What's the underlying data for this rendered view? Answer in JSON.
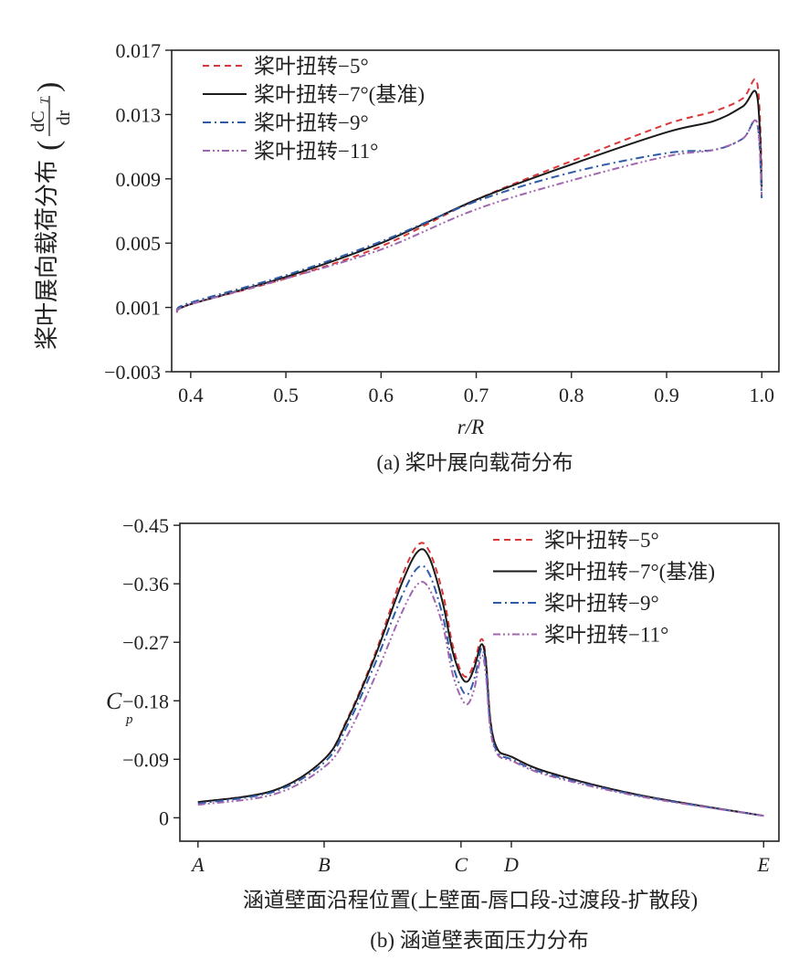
{
  "chart_data": [
    {
      "type": "line",
      "title": "",
      "caption": "(a) 桨叶展向载荷分布",
      "xlabel": "r/R",
      "ylabel": "桨叶展向载荷分布",
      "ylabel_fraction": {
        "num": "dC",
        "num_sub": "T",
        "den": "dr"
      },
      "xlim": [
        0.38,
        1.018
      ],
      "ylim": [
        -0.003,
        0.017
      ],
      "xticks": [
        0.4,
        0.5,
        0.6,
        0.7,
        0.8,
        0.9,
        1.0
      ],
      "xtick_labels": [
        "0.4",
        "0.5",
        "0.6",
        "0.7",
        "0.8",
        "0.9",
        "1.0"
      ],
      "yticks": [
        -0.003,
        0.001,
        0.005,
        0.009,
        0.013,
        0.017
      ],
      "ytick_labels": [
        "−0.003",
        "0.001",
        "0.005",
        "0.009",
        "0.013",
        "0.017"
      ],
      "legend_position": "top-left",
      "x": [
        0.385,
        0.4,
        0.5,
        0.6,
        0.7,
        0.8,
        0.9,
        0.95,
        0.98,
        0.995,
        1.0
      ],
      "series": [
        {
          "name": "桨叶扭转−5°",
          "color": "#d9383a",
          "dash": "dashed",
          "values": [
            0.0007,
            0.0012,
            0.0028,
            0.0048,
            0.0077,
            0.0101,
            0.0124,
            0.0132,
            0.014,
            0.015,
            0.0095
          ]
        },
        {
          "name": "桨叶扭转−7°(基准)",
          "color": "#1a1a1a",
          "dash": "solid",
          "values": [
            0.0007,
            0.0012,
            0.0029,
            0.005,
            0.0077,
            0.0099,
            0.0119,
            0.0126,
            0.0135,
            0.0142,
            0.0085
          ]
        },
        {
          "name": "桨叶扭转−9°",
          "color": "#2f5ca8",
          "dash": "dashdot",
          "values": [
            0.0008,
            0.0013,
            0.003,
            0.0051,
            0.0076,
            0.0094,
            0.0106,
            0.0108,
            0.0115,
            0.0125,
            0.0078
          ]
        },
        {
          "name": "桨叶扭转−11°",
          "color": "#a066b0",
          "dash": "dashdotdot",
          "values": [
            0.0007,
            0.0012,
            0.0028,
            0.0046,
            0.0071,
            0.0089,
            0.0104,
            0.0108,
            0.0115,
            0.0125,
            0.008
          ]
        }
      ]
    },
    {
      "type": "line",
      "title": "",
      "caption": "(b) 涵道壁表面压力分布",
      "xlabel": "涵道壁面沿程位置(上壁面-唇口段-过渡段-扩散段)",
      "ylabel": "C",
      "ylabel_sub": "p",
      "xlim": [
        -0.032,
        1.027
      ],
      "ylim": [
        0.036,
        -0.453
      ],
      "y_inverted": true,
      "xticks": [
        0,
        0.223,
        0.465,
        0.554,
        1.0
      ],
      "xtick_labels": [
        "A",
        "B",
        "C",
        "D",
        "E"
      ],
      "yticks": [
        -0.45,
        -0.36,
        -0.27,
        -0.18,
        -0.09,
        0
      ],
      "ytick_labels": [
        "−0.45",
        "−0.36",
        "−0.27",
        "−0.18",
        "−0.09",
        "0"
      ],
      "legend_position": "top-right",
      "x": [
        0,
        0.134,
        0.223,
        0.263,
        0.312,
        0.36,
        0.389,
        0.409,
        0.433,
        0.449,
        0.465,
        0.477,
        0.489,
        0.501,
        0.509,
        0.517,
        0.53,
        0.554,
        0.619,
        0.78,
        1.0
      ],
      "series": [
        {
          "name": "桨叶扭转−5°",
          "color": "#d9383a",
          "dash": "dashed",
          "values": [
            -0.024,
            -0.042,
            -0.09,
            -0.15,
            -0.25,
            -0.37,
            -0.42,
            -0.41,
            -0.345,
            -0.27,
            -0.225,
            -0.218,
            -0.24,
            -0.275,
            -0.245,
            -0.15,
            -0.105,
            -0.094,
            -0.07,
            -0.035,
            -0.003
          ]
        },
        {
          "name": "桨叶扭转−7°(基准)",
          "color": "#1a1a1a",
          "dash": "solid",
          "values": [
            -0.024,
            -0.042,
            -0.09,
            -0.148,
            -0.246,
            -0.36,
            -0.41,
            -0.4,
            -0.33,
            -0.26,
            -0.218,
            -0.21,
            -0.232,
            -0.267,
            -0.24,
            -0.148,
            -0.105,
            -0.094,
            -0.07,
            -0.035,
            -0.003
          ]
        },
        {
          "name": "桨叶扭转−9°",
          "color": "#2f5ca8",
          "dash": "dashdot",
          "values": [
            -0.022,
            -0.04,
            -0.085,
            -0.14,
            -0.235,
            -0.34,
            -0.385,
            -0.375,
            -0.31,
            -0.24,
            -0.2,
            -0.19,
            -0.215,
            -0.26,
            -0.23,
            -0.14,
            -0.1,
            -0.09,
            -0.067,
            -0.034,
            -0.003
          ]
        },
        {
          "name": "桨叶扭转−11°",
          "color": "#a066b0",
          "dash": "dashdotdot",
          "values": [
            -0.02,
            -0.036,
            -0.078,
            -0.125,
            -0.215,
            -0.315,
            -0.36,
            -0.352,
            -0.295,
            -0.225,
            -0.185,
            -0.175,
            -0.2,
            -0.25,
            -0.22,
            -0.135,
            -0.097,
            -0.088,
            -0.065,
            -0.033,
            -0.003
          ]
        }
      ]
    }
  ]
}
